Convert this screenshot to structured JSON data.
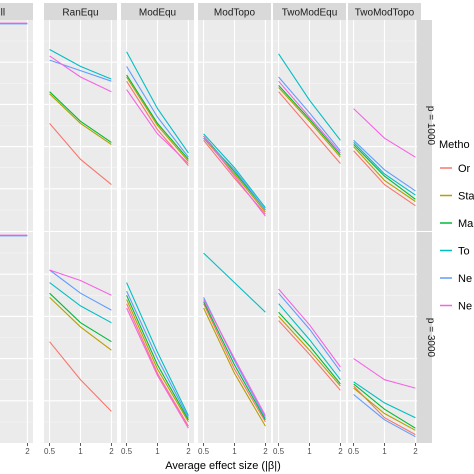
{
  "chart_data": {
    "type": "line",
    "xlabel": "Average effect size (|β|)",
    "ylabel": "",
    "facet_columns": [
      "Null",
      "RanEqu",
      "ModEqu",
      "ModTopo",
      "TwoModEqu",
      "TwoModTopo"
    ],
    "facet_rows": [
      "p = 1000",
      "p = 3000"
    ],
    "x_ticks": {
      "Null": [
        "1",
        "2"
      ],
      "RanEqu": [
        "0.5",
        "1",
        "2"
      ],
      "ModEqu": [
        "0.5",
        "1",
        "2"
      ],
      "ModTopo": [
        "0.5",
        "1",
        "2"
      ],
      "TwoModEqu": [
        "0.5",
        "1",
        "2"
      ],
      "TwoModTopo": [
        "0.5",
        "1",
        "2"
      ]
    },
    "x_values": [
      0.5,
      1,
      2
    ],
    "ylim": [
      0,
      1
    ],
    "grid": true,
    "legend": {
      "position": "right",
      "title": "Metho",
      "entries": [
        {
          "label": "Or",
          "color": "#F8766D"
        },
        {
          "label": "Sta",
          "color": "#B79F00"
        },
        {
          "label": "Ma",
          "color": "#00BA38"
        },
        {
          "label": "To",
          "color": "#00BFC4"
        },
        {
          "label": "Ne",
          "color": "#619CFF"
        },
        {
          "label": "Ne",
          "color": "#F564E3"
        }
      ]
    },
    "panels": [
      {
        "row": "p = 1000",
        "col": "Null",
        "series": [
          {
            "color": "#F564E3",
            "x": [
              0.5,
              1,
              2
            ],
            "y": [
              0.985,
              0.985,
              0.985
            ]
          },
          {
            "color": "#619CFF",
            "x": [
              0.5,
              1,
              2
            ],
            "y": [
              0.982,
              0.982,
              0.982
            ]
          }
        ]
      },
      {
        "row": "p = 1000",
        "col": "RanEqu",
        "series": [
          {
            "color": "#F8766D",
            "x": [
              0.5,
              1,
              2
            ],
            "y": [
              0.51,
              0.34,
              0.22
            ]
          },
          {
            "color": "#B79F00",
            "x": [
              0.5,
              1,
              2
            ],
            "y": [
              0.65,
              0.51,
              0.41
            ]
          },
          {
            "color": "#00BA38",
            "x": [
              0.5,
              1,
              2
            ],
            "y": [
              0.66,
              0.52,
              0.42
            ]
          },
          {
            "color": "#00BFC4",
            "x": [
              0.5,
              1,
              2
            ],
            "y": [
              0.86,
              0.78,
              0.72
            ]
          },
          {
            "color": "#619CFF",
            "x": [
              0.5,
              1,
              2
            ],
            "y": [
              0.81,
              0.76,
              0.71
            ]
          },
          {
            "color": "#F564E3",
            "x": [
              0.5,
              1,
              2
            ],
            "y": [
              0.83,
              0.73,
              0.66
            ]
          }
        ]
      },
      {
        "row": "p = 1000",
        "col": "ModEqu",
        "series": [
          {
            "color": "#F8766D",
            "x": [
              0.5,
              1,
              2
            ],
            "y": [
              0.71,
              0.48,
              0.31
            ]
          },
          {
            "color": "#B79F00",
            "x": [
              0.5,
              1,
              2
            ],
            "y": [
              0.73,
              0.5,
              0.33
            ]
          },
          {
            "color": "#00BA38",
            "x": [
              0.5,
              1,
              2
            ],
            "y": [
              0.74,
              0.51,
              0.34
            ]
          },
          {
            "color": "#00BFC4",
            "x": [
              0.5,
              1,
              2
            ],
            "y": [
              0.85,
              0.58,
              0.37
            ]
          },
          {
            "color": "#619CFF",
            "x": [
              0.5,
              1,
              2
            ],
            "y": [
              0.78,
              0.54,
              0.35
            ]
          },
          {
            "color": "#F564E3",
            "x": [
              0.5,
              1,
              2
            ],
            "y": [
              0.67,
              0.46,
              0.32
            ]
          }
        ]
      },
      {
        "row": "p = 1000",
        "col": "ModTopo",
        "series": [
          {
            "color": "#F8766D",
            "x": [
              0.5,
              1,
              2
            ],
            "y": [
              0.43,
              0.25,
              0.08
            ]
          },
          {
            "color": "#B79F00",
            "x": [
              0.5,
              1,
              2
            ],
            "y": [
              0.44,
              0.27,
              0.09
            ]
          },
          {
            "color": "#00BA38",
            "x": [
              0.5,
              1,
              2
            ],
            "y": [
              0.45,
              0.28,
              0.1
            ]
          },
          {
            "color": "#00BFC4",
            "x": [
              0.5,
              1,
              2
            ],
            "y": [
              0.46,
              0.3,
              0.11
            ]
          },
          {
            "color": "#619CFF",
            "x": [
              0.5,
              1,
              2
            ],
            "y": [
              0.44,
              0.29,
              0.1
            ]
          },
          {
            "color": "#F564E3",
            "x": [
              0.5,
              1,
              2
            ],
            "y": [
              0.45,
              0.26,
              0.07
            ]
          }
        ]
      },
      {
        "row": "p = 1000",
        "col": "TwoModEqu",
        "series": [
          {
            "color": "#F8766D",
            "x": [
              0.5,
              1,
              2
            ],
            "y": [
              0.66,
              0.49,
              0.32
            ]
          },
          {
            "color": "#B79F00",
            "x": [
              0.5,
              1,
              2
            ],
            "y": [
              0.68,
              0.52,
              0.35
            ]
          },
          {
            "color": "#00BA38",
            "x": [
              0.5,
              1,
              2
            ],
            "y": [
              0.69,
              0.53,
              0.36
            ]
          },
          {
            "color": "#00BFC4",
            "x": [
              0.5,
              1,
              2
            ],
            "y": [
              0.84,
              0.62,
              0.43
            ]
          },
          {
            "color": "#619CFF",
            "x": [
              0.5,
              1,
              2
            ],
            "y": [
              0.73,
              0.56,
              0.38
            ]
          },
          {
            "color": "#F564E3",
            "x": [
              0.5,
              1,
              2
            ],
            "y": [
              0.71,
              0.54,
              0.37
            ]
          }
        ]
      },
      {
        "row": "p = 1000",
        "col": "TwoModTopo",
        "series": [
          {
            "color": "#F8766D",
            "x": [
              0.5,
              1,
              2
            ],
            "y": [
              0.38,
              0.22,
              0.12
            ]
          },
          {
            "color": "#B79F00",
            "x": [
              0.5,
              1,
              2
            ],
            "y": [
              0.4,
              0.24,
              0.14
            ]
          },
          {
            "color": "#00BA38",
            "x": [
              0.5,
              1,
              2
            ],
            "y": [
              0.41,
              0.26,
              0.15
            ]
          },
          {
            "color": "#00BFC4",
            "x": [
              0.5,
              1,
              2
            ],
            "y": [
              0.42,
              0.27,
              0.17
            ]
          },
          {
            "color": "#619CFF",
            "x": [
              0.5,
              1,
              2
            ],
            "y": [
              0.43,
              0.29,
              0.19
            ]
          },
          {
            "color": "#F564E3",
            "x": [
              0.5,
              1,
              2
            ],
            "y": [
              0.58,
              0.44,
              0.35
            ]
          }
        ]
      },
      {
        "row": "p = 3000",
        "col": "Null",
        "series": [
          {
            "color": "#F564E3",
            "x": [
              0.5,
              1,
              2
            ],
            "y": [
              0.985,
              0.985,
              0.985
            ]
          },
          {
            "color": "#619CFF",
            "x": [
              0.5,
              1,
              2
            ],
            "y": [
              0.982,
              0.982,
              0.982
            ]
          }
        ]
      },
      {
        "row": "p = 3000",
        "col": "RanEqu",
        "series": [
          {
            "color": "#F8766D",
            "x": [
              0.5,
              1,
              2
            ],
            "y": [
              0.48,
              0.3,
              0.15
            ]
          },
          {
            "color": "#B79F00",
            "x": [
              0.5,
              1,
              2
            ],
            "y": [
              0.69,
              0.55,
              0.44
            ]
          },
          {
            "color": "#00BA38",
            "x": [
              0.5,
              1,
              2
            ],
            "y": [
              0.71,
              0.57,
              0.48
            ]
          },
          {
            "color": "#00BFC4",
            "x": [
              0.5,
              1,
              2
            ],
            "y": [
              0.76,
              0.65,
              0.57
            ]
          },
          {
            "color": "#619CFF",
            "x": [
              0.5,
              1,
              2
            ],
            "y": [
              0.82,
              0.71,
              0.63
            ]
          },
          {
            "color": "#F564E3",
            "x": [
              0.5,
              1,
              2
            ],
            "y": [
              0.82,
              0.77,
              0.7
            ]
          }
        ]
      },
      {
        "row": "p = 3000",
        "col": "ModEqu",
        "series": [
          {
            "color": "#F8766D",
            "x": [
              0.5,
              1,
              2
            ],
            "y": [
              0.66,
              0.33,
              0.08
            ]
          },
          {
            "color": "#B79F00",
            "x": [
              0.5,
              1,
              2
            ],
            "y": [
              0.68,
              0.35,
              0.1
            ]
          },
          {
            "color": "#00BA38",
            "x": [
              0.5,
              1,
              2
            ],
            "y": [
              0.7,
              0.37,
              0.11
            ]
          },
          {
            "color": "#00BFC4",
            "x": [
              0.5,
              1,
              2
            ],
            "y": [
              0.76,
              0.43,
              0.13
            ]
          },
          {
            "color": "#619CFF",
            "x": [
              0.5,
              1,
              2
            ],
            "y": [
              0.72,
              0.4,
              0.12
            ]
          },
          {
            "color": "#F564E3",
            "x": [
              0.5,
              1,
              2
            ],
            "y": [
              0.64,
              0.32,
              0.07
            ]
          }
        ]
      },
      {
        "row": "p = 3000",
        "col": "ModTopo",
        "series": [
          {
            "color": "#F8766D",
            "x": [
              0.5,
              1,
              2
            ],
            "y": [
              0.66,
              0.35,
              0.1
            ]
          },
          {
            "color": "#B79F00",
            "x": [
              0.5,
              1,
              2
            ],
            "y": [
              0.64,
              0.33,
              0.08
            ]
          },
          {
            "color": "#00BA38",
            "x": [
              0.5,
              1,
              2
            ],
            "y": [
              0.67,
              0.37,
              0.11
            ]
          },
          {
            "color": "#00BFC4",
            "x": [
              0.5,
              1,
              2
            ],
            "y": [
              0.9,
              0.76,
              0.62
            ]
          },
          {
            "color": "#619CFF",
            "x": [
              0.5,
              1,
              2
            ],
            "y": [
              0.69,
              0.39,
              0.12
            ]
          },
          {
            "color": "#F564E3",
            "x": [
              0.5,
              1,
              2
            ],
            "y": [
              0.68,
              0.4,
              0.13
            ]
          }
        ]
      },
      {
        "row": "p = 3000",
        "col": "TwoModEqu",
        "series": [
          {
            "color": "#F8766D",
            "x": [
              0.5,
              1,
              2
            ],
            "y": [
              0.58,
              0.42,
              0.25
            ]
          },
          {
            "color": "#B79F00",
            "x": [
              0.5,
              1,
              2
            ],
            "y": [
              0.6,
              0.44,
              0.27
            ]
          },
          {
            "color": "#00BA38",
            "x": [
              0.5,
              1,
              2
            ],
            "y": [
              0.62,
              0.46,
              0.28
            ]
          },
          {
            "color": "#00BFC4",
            "x": [
              0.5,
              1,
              2
            ],
            "y": [
              0.66,
              0.49,
              0.3
            ]
          },
          {
            "color": "#619CFF",
            "x": [
              0.5,
              1,
              2
            ],
            "y": [
              0.71,
              0.54,
              0.34
            ]
          },
          {
            "color": "#F564E3",
            "x": [
              0.5,
              1,
              2
            ],
            "y": [
              0.73,
              0.56,
              0.36
            ]
          }
        ]
      },
      {
        "row": "p = 3000",
        "col": "TwoModTopo",
        "series": [
          {
            "color": "#F8766D",
            "x": [
              0.5,
              1,
              2
            ],
            "y": [
              0.27,
              0.12,
              0.04
            ]
          },
          {
            "color": "#B79F00",
            "x": [
              0.5,
              1,
              2
            ],
            "y": [
              0.26,
              0.14,
              0.06
            ]
          },
          {
            "color": "#00BA38",
            "x": [
              0.5,
              1,
              2
            ],
            "y": [
              0.28,
              0.16,
              0.07
            ]
          },
          {
            "color": "#00BFC4",
            "x": [
              0.5,
              1,
              2
            ],
            "y": [
              0.29,
              0.19,
              0.12
            ]
          },
          {
            "color": "#619CFF",
            "x": [
              0.5,
              1,
              2
            ],
            "y": [
              0.23,
              0.11,
              0.03
            ]
          },
          {
            "color": "#F564E3",
            "x": [
              0.5,
              1,
              2
            ],
            "y": [
              0.4,
              0.3,
              0.26
            ]
          }
        ]
      }
    ]
  }
}
